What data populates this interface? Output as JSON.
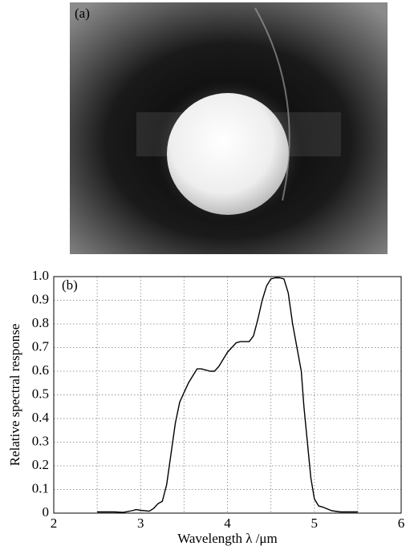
{
  "image_label": "(a)",
  "chart_data": {
    "type": "line",
    "panel_label": "(b)",
    "xlabel": "Wavelength λ /μm",
    "ylabel": "Relative spectral response",
    "x": [
      2.5,
      2.7,
      2.8,
      2.9,
      2.95,
      3.0,
      3.1,
      3.15,
      3.2,
      3.25,
      3.3,
      3.35,
      3.4,
      3.45,
      3.5,
      3.55,
      3.6,
      3.65,
      3.7,
      3.8,
      3.85,
      3.9,
      4.0,
      4.1,
      4.15,
      4.25,
      4.3,
      4.35,
      4.4,
      4.45,
      4.5,
      4.55,
      4.6,
      4.65,
      4.7,
      4.75,
      4.8,
      4.85,
      4.88,
      4.92,
      4.96,
      5.0,
      5.05,
      5.1,
      5.2,
      5.3,
      5.5
    ],
    "values": [
      0.005,
      0.005,
      0.003,
      0.01,
      0.015,
      0.012,
      0.008,
      0.02,
      0.04,
      0.05,
      0.12,
      0.25,
      0.38,
      0.47,
      0.51,
      0.55,
      0.58,
      0.61,
      0.61,
      0.6,
      0.6,
      0.62,
      0.68,
      0.72,
      0.725,
      0.725,
      0.75,
      0.82,
      0.9,
      0.96,
      0.99,
      0.995,
      0.995,
      0.99,
      0.93,
      0.8,
      0.7,
      0.6,
      0.45,
      0.3,
      0.15,
      0.06,
      0.03,
      0.025,
      0.01,
      0.005,
      0.005
    ],
    "color": "#000000",
    "xlim": [
      2,
      6
    ],
    "xticks": [
      2,
      3,
      4,
      5,
      6
    ],
    "xminor": [
      2.5,
      3.5,
      4.5,
      5.5
    ],
    "ylim": [
      0,
      1
    ],
    "yticks": [
      0,
      0.1,
      0.2,
      0.3,
      0.4,
      0.5,
      0.6,
      0.7,
      0.8,
      0.9,
      {
        "value": 1,
        "label": "1.0"
      }
    ],
    "grid": true
  }
}
